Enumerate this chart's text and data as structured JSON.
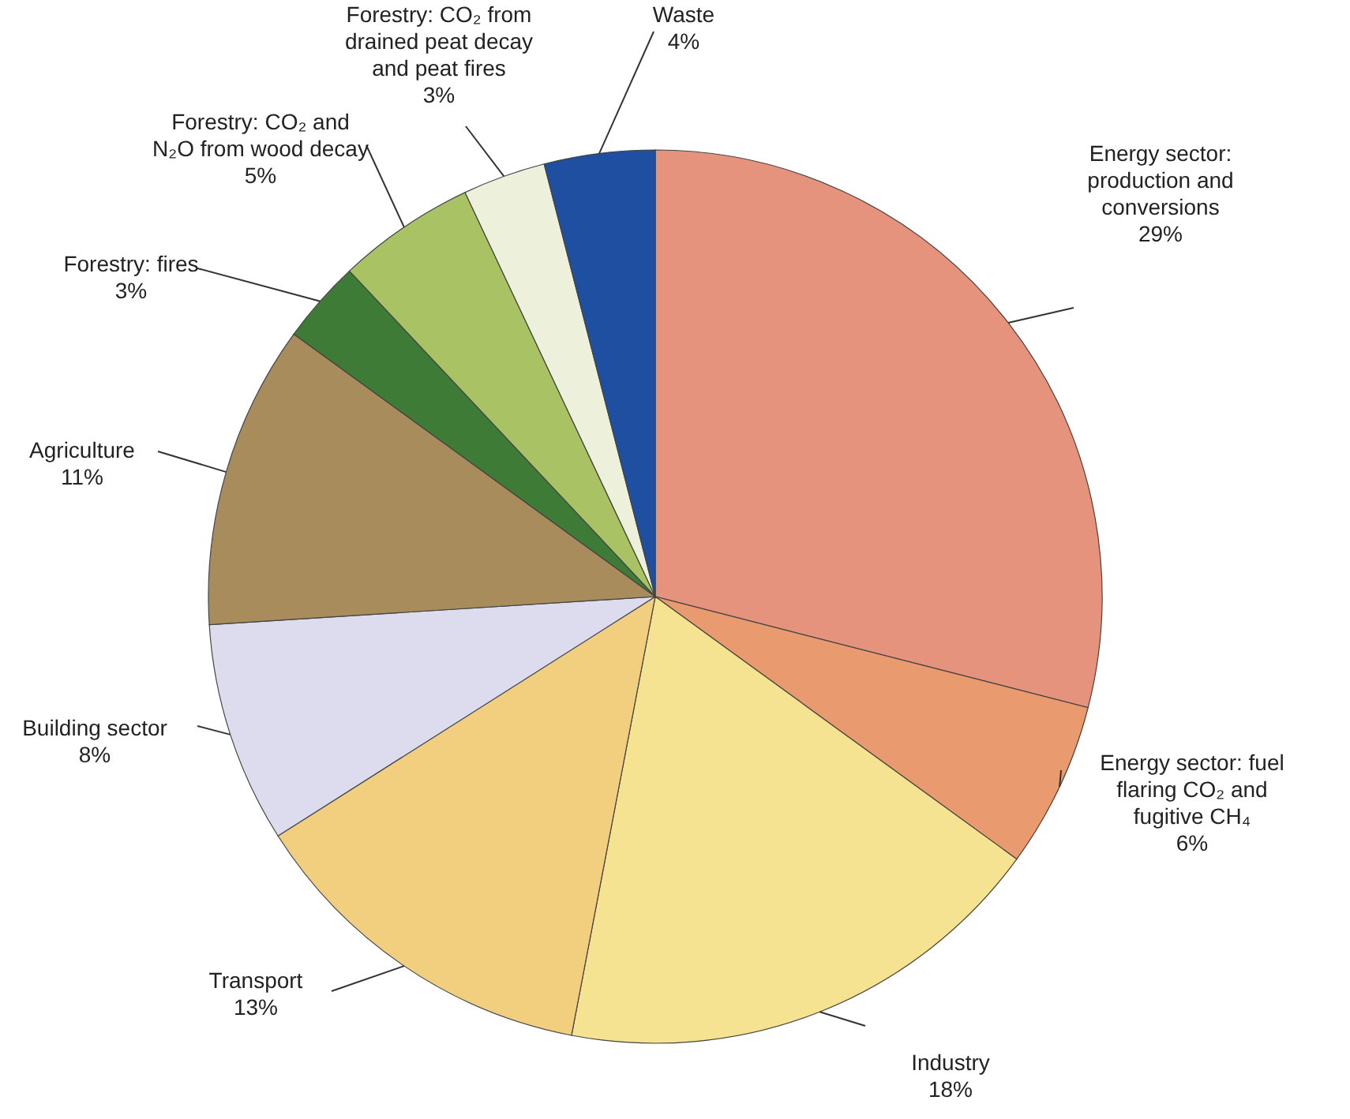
{
  "chart_data": {
    "type": "pie",
    "categories": [
      "Energy sector: production and conversions",
      "Energy sector: fuel flaring CO₂ and fugitive CH₄",
      "Industry",
      "Transport",
      "Building sector",
      "Agriculture",
      "Forestry: fires",
      "Forestry: CO₂ and N₂O from wood decay",
      "Forestry: CO₂ from drained peat decay and peat fires",
      "Waste"
    ],
    "values": [
      29,
      6,
      18,
      13,
      8,
      11,
      3,
      5,
      3,
      4
    ],
    "value_labels": [
      "29%",
      "6%",
      "18%",
      "13%",
      "8%",
      "11%",
      "3%",
      "5%",
      "3%",
      "4%"
    ],
    "colors": [
      "#e5937c",
      "#e99a6e",
      "#f6e391",
      "#f1cf7f",
      "#dcdcee",
      "#a98c5b",
      "#3e7b37",
      "#a9c263",
      "#edf0da",
      "#1f4fa1"
    ]
  }
}
